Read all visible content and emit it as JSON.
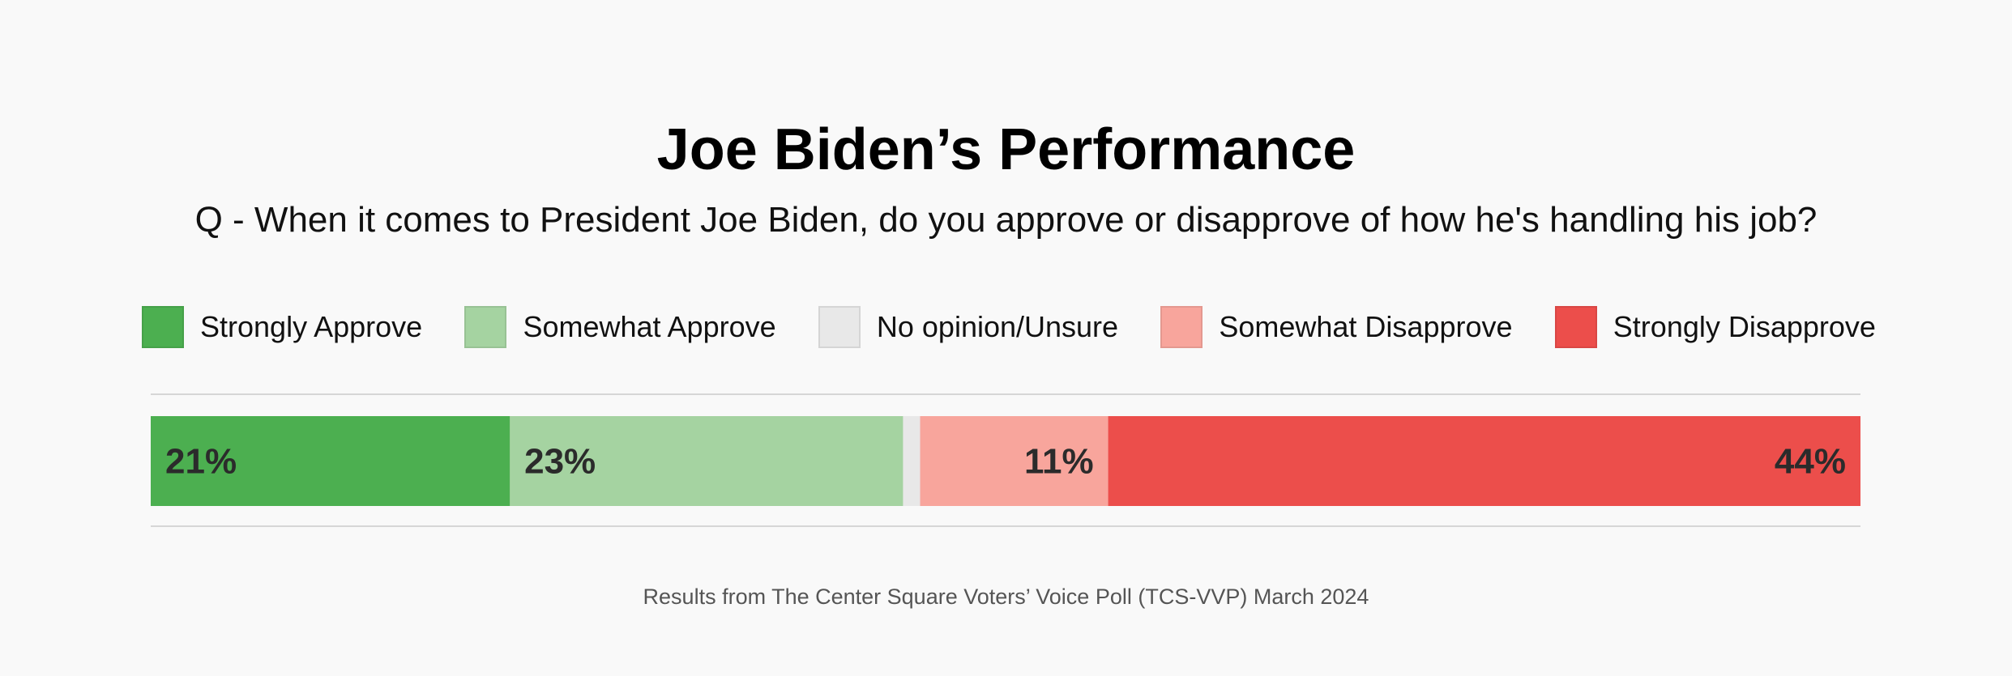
{
  "header": {
    "title": "Joe Biden’s Performance",
    "subtitle": "Q - When it comes to President Joe Biden, do you approve or disapprove of how he's handling his job?"
  },
  "legend": {
    "items": [
      {
        "label": "Strongly Approve",
        "color": "#4caf50"
      },
      {
        "label": "Somewhat Approve",
        "color": "#a5d3a1"
      },
      {
        "label": "No opinion/Unsure",
        "color": "#e8e8e8"
      },
      {
        "label": "Somewhat Disapprove",
        "color": "#f8a59c"
      },
      {
        "label": "Strongly Disapprove",
        "color": "#ec4e4b"
      }
    ]
  },
  "chart_data": {
    "type": "bar",
    "orientation": "horizontal-stacked",
    "categories": [
      "Strongly Approve",
      "Somewhat Approve",
      "No opinion/Unsure",
      "Somewhat Disapprove",
      "Strongly Disapprove"
    ],
    "values": [
      21,
      23,
      1,
      11,
      44
    ],
    "data_labels": [
      "21%",
      "23%",
      "",
      "11%",
      "44%"
    ],
    "colors": [
      "#4caf50",
      "#a5d3a1",
      "#e8e8e8",
      "#f8a59c",
      "#ec4e4b"
    ],
    "label_align": [
      "left",
      "left",
      "none",
      "right",
      "right"
    ],
    "legend_position": "top",
    "grid": false
  },
  "footer": {
    "source": "Results from The Center Square Voters’ Voice Poll (TCS-VVP) March 2024"
  }
}
